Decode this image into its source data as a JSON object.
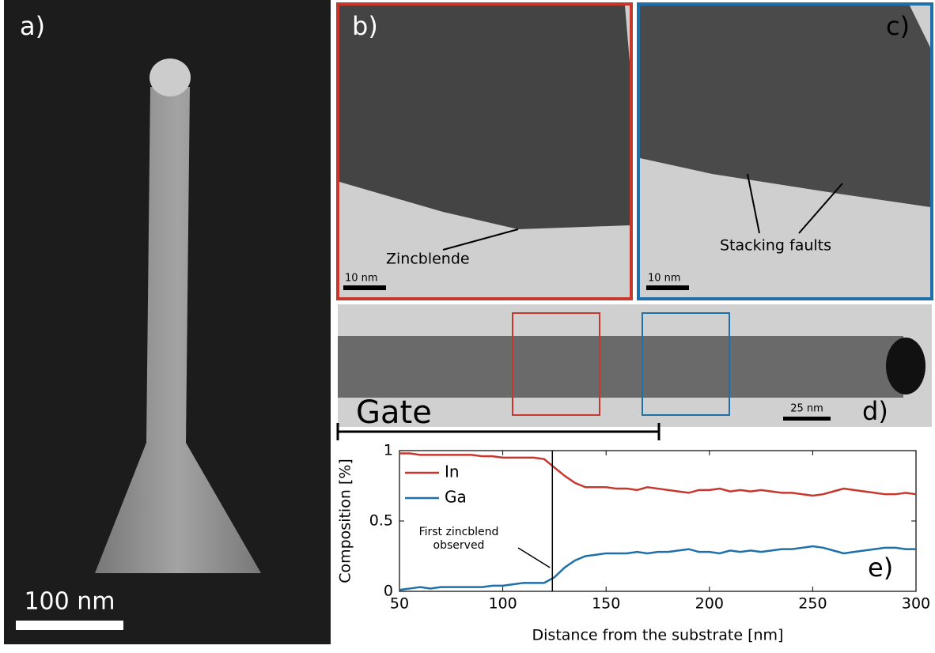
{
  "panels": {
    "a": {
      "label": "a)",
      "scale": "100 nm"
    },
    "b": {
      "label": "b)",
      "scale": "10 nm",
      "annotation": "Zincblende"
    },
    "c": {
      "label": "c)",
      "scale": "10 nm",
      "annotation": "Stacking faults"
    },
    "d": {
      "label": "d)",
      "scale": "25 nm"
    },
    "gate": "Gate"
  },
  "chart_data": {
    "type": "line",
    "label": "e)",
    "xlabel": "Distance from the substrate [nm]",
    "ylabel": "Composition [%]",
    "annotation": "First zincblend observed",
    "vline": 124,
    "x": [
      50,
      55,
      60,
      65,
      70,
      75,
      80,
      85,
      90,
      95,
      100,
      105,
      110,
      115,
      120,
      125,
      130,
      135,
      140,
      145,
      150,
      155,
      160,
      165,
      170,
      175,
      180,
      185,
      190,
      195,
      200,
      205,
      210,
      215,
      220,
      225,
      230,
      235,
      240,
      245,
      250,
      255,
      260,
      265,
      270,
      275,
      280,
      285,
      290,
      295,
      300
    ],
    "series": [
      {
        "name": "In",
        "color": "#c8372d",
        "values": [
          0.98,
          0.98,
          0.97,
          0.97,
          0.97,
          0.97,
          0.97,
          0.97,
          0.96,
          0.96,
          0.95,
          0.95,
          0.95,
          0.95,
          0.94,
          0.88,
          0.82,
          0.77,
          0.74,
          0.74,
          0.74,
          0.73,
          0.73,
          0.72,
          0.74,
          0.73,
          0.72,
          0.71,
          0.7,
          0.72,
          0.72,
          0.73,
          0.71,
          0.72,
          0.71,
          0.72,
          0.71,
          0.7,
          0.7,
          0.69,
          0.68,
          0.69,
          0.71,
          0.73,
          0.72,
          0.71,
          0.7,
          0.69,
          0.69,
          0.7,
          0.69
        ]
      },
      {
        "name": "Ga",
        "color": "#1f6fa8",
        "values": [
          0.01,
          0.02,
          0.03,
          0.02,
          0.03,
          0.03,
          0.03,
          0.03,
          0.03,
          0.04,
          0.04,
          0.05,
          0.06,
          0.06,
          0.06,
          0.1,
          0.17,
          0.22,
          0.25,
          0.26,
          0.27,
          0.27,
          0.27,
          0.28,
          0.27,
          0.28,
          0.28,
          0.29,
          0.3,
          0.28,
          0.28,
          0.27,
          0.29,
          0.28,
          0.29,
          0.28,
          0.29,
          0.3,
          0.3,
          0.31,
          0.32,
          0.31,
          0.29,
          0.27,
          0.28,
          0.29,
          0.3,
          0.31,
          0.31,
          0.3,
          0.3
        ]
      }
    ],
    "xlim": [
      50,
      300
    ],
    "xticks": [
      50,
      100,
      150,
      200,
      250,
      300
    ],
    "ylim": [
      0,
      1
    ],
    "yticks": [
      0,
      0.5,
      1
    ],
    "legend": "upper-left"
  }
}
